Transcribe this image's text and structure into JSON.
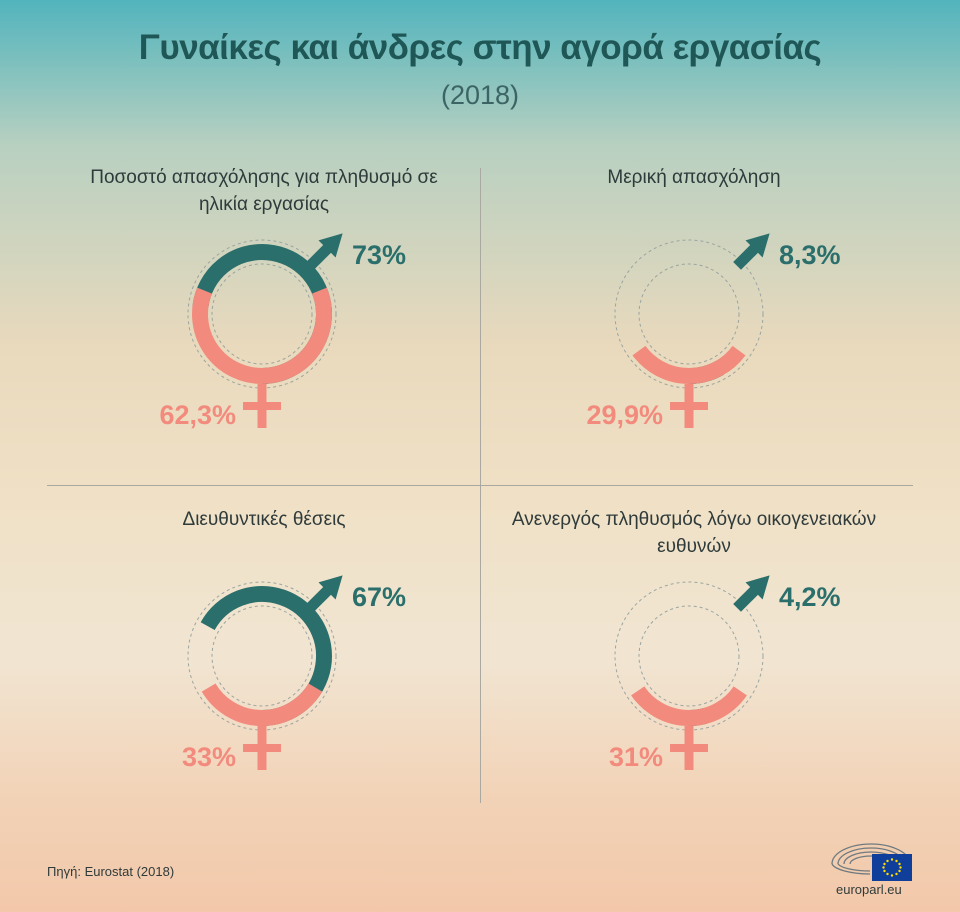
{
  "header": {
    "title": "Γυναίκες και άνδρες στην αγορά εργασίας",
    "subtitle": "(2018)"
  },
  "colors": {
    "male": "#2b6f6c",
    "female": "#f28b7d",
    "ring": "#9aa5a0"
  },
  "chart_data": [
    {
      "type": "pie",
      "title": "Ποσοστό απασχόλησης για πληθυσμό σε ηλικία εργασίας",
      "series": [
        {
          "name": "male-icon",
          "value": 73,
          "label": "73%"
        },
        {
          "name": "female-icon",
          "value": 62.3,
          "label": "62,3%"
        }
      ]
    },
    {
      "type": "pie",
      "title": "Μερική απασχόληση",
      "series": [
        {
          "name": "male-icon",
          "value": 8.3,
          "label": "8,3%"
        },
        {
          "name": "female-icon",
          "value": 29.9,
          "label": "29,9%"
        }
      ]
    },
    {
      "type": "pie",
      "title": "Διευθυντικές θέσεις",
      "series": [
        {
          "name": "male-icon",
          "value": 67,
          "label": "67%"
        },
        {
          "name": "female-icon",
          "value": 33,
          "label": "33%"
        }
      ]
    },
    {
      "type": "pie",
      "title": "Ανενεργός πληθυσμός λόγω οικογενειακών ευθυνών",
      "series": [
        {
          "name": "male-icon",
          "value": 4.2,
          "label": "4,2%"
        },
        {
          "name": "female-icon",
          "value": 31,
          "label": "31%"
        }
      ]
    }
  ],
  "footer": {
    "source": "Πηγή: Eurostat (2018)",
    "brand": "europarl.eu"
  }
}
